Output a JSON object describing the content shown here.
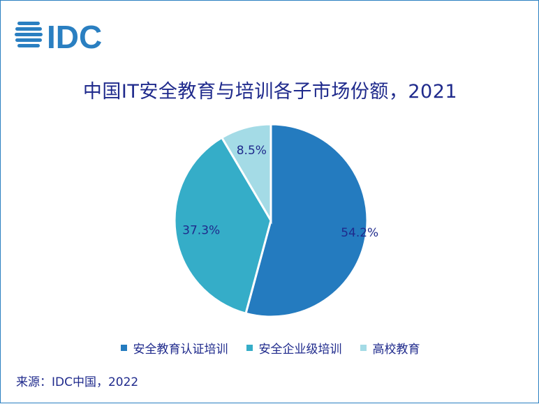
{
  "logo_text": "IDC",
  "chart_data": {
    "type": "pie",
    "title": "中国IT安全教育与培训各子市场份额，2021",
    "slices": [
      {
        "name": "安全教育认证培训",
        "value": 54.2,
        "label": "54.2%",
        "color": "#247bbf"
      },
      {
        "name": "安全企业级培训",
        "value": 37.3,
        "label": "37.3%",
        "color": "#35adc8"
      },
      {
        "name": "高校教育",
        "value": 8.5,
        "label": "8.5%",
        "color": "#a4dbe6"
      }
    ],
    "legend_placement": "bottom"
  },
  "source": "来源：IDC中国，2022"
}
